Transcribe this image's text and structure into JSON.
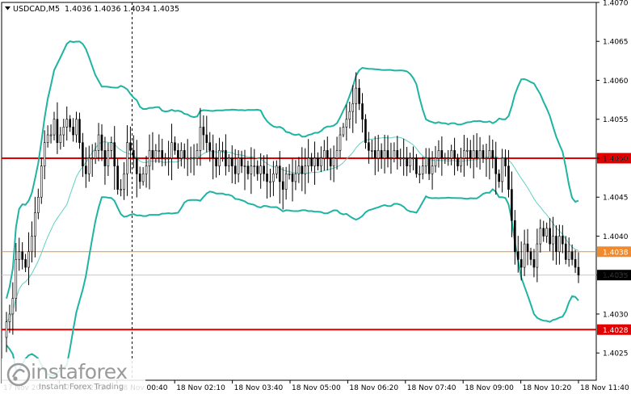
{
  "header": {
    "symbol_label": "USDCAD,M5",
    "ohlc_text": "1.4036 1.4036 1.4034 1.4035"
  },
  "brand": {
    "name": "instaforex",
    "tagline": "Instant Forex Trading"
  },
  "chart_data": {
    "type": "candlestick",
    "symbol": "USDCAD",
    "timeframe": "M5",
    "ylim": [
      1.40215,
      1.407
    ],
    "y_ticks": [
      "1.4070",
      "1.4065",
      "1.4060",
      "1.4055",
      "1.4050",
      "1.4045",
      "1.4040",
      "1.4035",
      "1.4030",
      "1.4025"
    ],
    "x_ticks": [
      "17 Nov 2024",
      "17 Nov 23:20",
      "18 Nov 00:40",
      "18 Nov 02:10",
      "18 Nov 03:40",
      "18 Nov 05:00",
      "18 Nov 06:20",
      "18 Nov 07:40",
      "18 Nov 09:00",
      "18 Nov 10:20",
      "18 Nov 11:40"
    ],
    "session_separator_label": "17 Nov 23:20",
    "horizontal_levels": [
      {
        "price": 1.405,
        "label": "1.4050",
        "color": "#e00000",
        "style": "thick"
      },
      {
        "price": 1.4038,
        "label": "1.4038",
        "color": "#f08a2c",
        "style": "thin"
      },
      {
        "price": 1.4028,
        "label": "1.4028",
        "color": "#e00000",
        "style": "thick"
      }
    ],
    "current_price": {
      "value": 1.4035,
      "label": "1.4035",
      "color": "#000000"
    },
    "ma_color": "#5fd1c4",
    "band_color": "#1fb3a4",
    "candle_color": "#000000",
    "closes": [
      1.4029,
      1.403,
      1.4032,
      1.4037,
      1.4038,
      1.4037,
      1.4036,
      1.4038,
      1.404,
      1.4043,
      1.4045,
      1.4049,
      1.4052,
      1.4053,
      1.4053,
      1.4055,
      1.4052,
      1.4053,
      1.4054,
      1.4055,
      1.4054,
      1.4053,
      1.4055,
      1.4052,
      1.4049,
      1.4048,
      1.405,
      1.405,
      1.4051,
      1.4053,
      1.4051,
      1.4049,
      1.4051,
      1.4052,
      1.4049,
      1.4046,
      1.4046,
      1.4048,
      1.4052,
      1.4051,
      1.405,
      1.4048,
      1.4047,
      1.4048,
      1.4049,
      1.4051,
      1.405,
      1.4051,
      1.4051,
      1.405,
      1.405,
      1.405,
      1.4052,
      1.4051,
      1.405,
      1.4051,
      1.405,
      1.405,
      1.405,
      1.405,
      1.4051,
      1.4054,
      1.4053,
      1.4052,
      1.4051,
      1.405,
      1.4049,
      1.4051,
      1.4051,
      1.4049,
      1.405,
      1.4049,
      1.4048,
      1.405,
      1.4049,
      1.4049,
      1.4048,
      1.4049,
      1.4049,
      1.4048,
      1.4049,
      1.4048,
      1.4047,
      1.4047,
      1.4048,
      1.4049,
      1.4047,
      1.4046,
      1.4048,
      1.4048,
      1.4047,
      1.4048,
      1.4049,
      1.4048,
      1.4049,
      1.405,
      1.4049,
      1.405,
      1.4049,
      1.405,
      1.4051,
      1.405,
      1.4049,
      1.405,
      1.4051,
      1.4053,
      1.4054,
      1.4055,
      1.4056,
      1.4057,
      1.4059,
      1.4057,
      1.4055,
      1.4052,
      1.4051,
      1.4051,
      1.405,
      1.4051,
      1.405,
      1.4051,
      1.405,
      1.405,
      1.4051,
      1.405,
      1.405,
      1.405,
      1.4049,
      1.405,
      1.405,
      1.4048,
      1.4048,
      1.4049,
      1.405,
      1.4048,
      1.4049,
      1.405,
      1.4051,
      1.405,
      1.405,
      1.405,
      1.4051,
      1.405,
      1.4049,
      1.405,
      1.4051,
      1.4051,
      1.405,
      1.4051,
      1.405,
      1.4051,
      1.405,
      1.405,
      1.4051,
      1.405,
      1.4048,
      1.4047,
      1.405,
      1.4049,
      1.4046,
      1.4042,
      1.4038,
      1.4037,
      1.4036,
      1.4039,
      1.4038,
      1.4037,
      1.4036,
      1.4039,
      1.4041,
      1.404,
      1.4041,
      1.4039,
      1.404,
      1.4038,
      1.404,
      1.4039,
      1.4037,
      1.4038,
      1.4037,
      1.4036,
      1.4035
    ]
  }
}
